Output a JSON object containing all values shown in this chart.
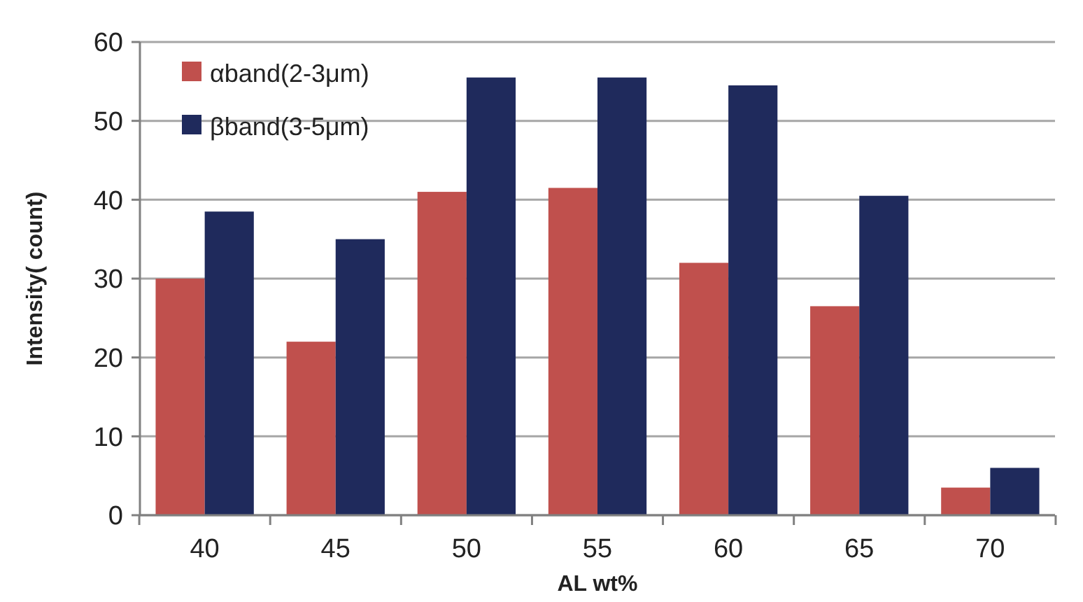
{
  "chart_data": {
    "type": "bar",
    "xlabel": "AL wt%",
    "ylabel": "Intensity( count)",
    "categories": [
      "40",
      "45",
      "50",
      "55",
      "60",
      "65",
      "70"
    ],
    "series": [
      {
        "name": "αband(2-3μm)",
        "color": "#c0504d",
        "values": [
          30,
          22,
          41,
          41.5,
          32,
          26.5,
          3.5
        ]
      },
      {
        "name": "βband(3-5μm)",
        "color": "#1f2a5c",
        "values": [
          38.5,
          35,
          55.5,
          55.5,
          54.5,
          40.5,
          6
        ]
      }
    ],
    "ylim": [
      0,
      60
    ],
    "yticks": [
      0,
      10,
      20,
      30,
      40,
      50,
      60
    ],
    "grid": "y",
    "legend": "top left"
  }
}
